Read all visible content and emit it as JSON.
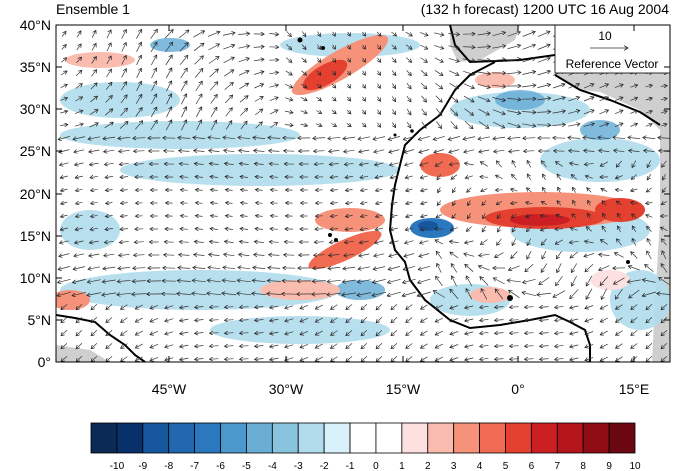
{
  "map": {
    "title_left": "Ensemble 1",
    "title_right": "(132 h forecast) 1200 UTC 16 Aug 2004",
    "lat_labels": [
      "40°N",
      "35°N",
      "30°N",
      "25°N",
      "20°N",
      "15°N",
      "10°N",
      "5°N",
      "0°"
    ],
    "lon_labels": [
      "45°W",
      "30°W",
      "15°W",
      "0°",
      "15°E"
    ],
    "reference_vector": {
      "value": "10",
      "label": "Reference Vector"
    },
    "colorbar": {
      "labels": [
        "-10",
        "-9",
        "-8",
        "-7",
        "-6",
        "-5",
        "-4",
        "-3",
        "-2",
        "-1",
        "0",
        "1",
        "2",
        "3",
        "4",
        "5",
        "6",
        "7",
        "8",
        "9",
        "10"
      ],
      "colors": [
        "#0b2a55",
        "#08306b",
        "#16569d",
        "#2167b0",
        "#2b78be",
        "#4b98cd",
        "#6aaed6",
        "#89c4df",
        "#b0dcec",
        "#d8f0fa",
        "#ffffff",
        "#ffffff",
        "#fde0e0",
        "#fbbcb0",
        "#f7927a",
        "#f06b52",
        "#e3402f",
        "#cc1f24",
        "#b3151b",
        "#8f0d14",
        "#6b0710"
      ]
    },
    "shading": {
      "positive": "#e3402f",
      "light_positive": "#f7927a",
      "negative": "#2b78be",
      "light_negative": "#b0dcec"
    }
  }
}
